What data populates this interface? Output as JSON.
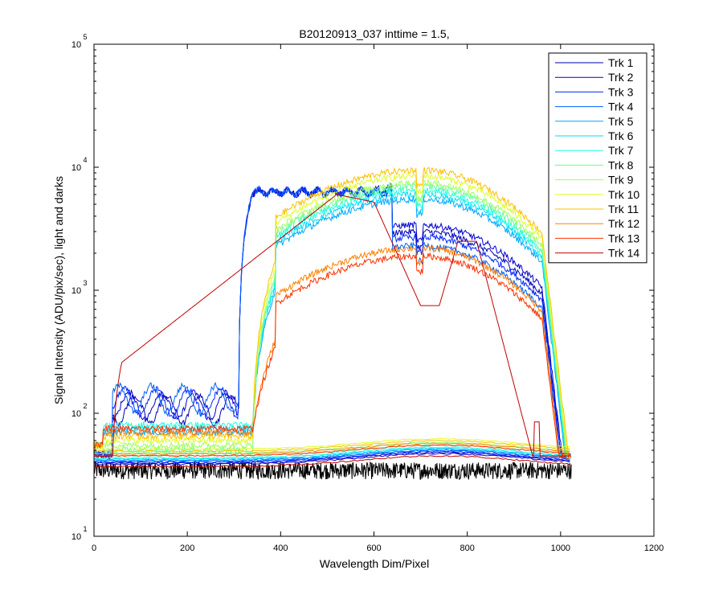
{
  "chart_data": {
    "type": "line",
    "title": "B20120913_037 inttime = 1.5,",
    "xlabel": "Wavelength Dim/Pixel",
    "ylabel": "Signal Intensity (ADU/pix/sec), light and darks",
    "xlim": [
      0,
      1200
    ],
    "ylim": [
      10,
      100000
    ],
    "yscale": "log",
    "xticks": [
      "0",
      "200",
      "400",
      "600",
      "800",
      "1000",
      "1200"
    ],
    "yticks": [
      {
        "base": "10",
        "exp": "1"
      },
      {
        "base": "10",
        "exp": "2"
      },
      {
        "base": "10",
        "exp": "3"
      },
      {
        "base": "10",
        "exp": "4"
      },
      {
        "base": "10",
        "exp": "5"
      }
    ],
    "grid": false,
    "legend_position": "top-right",
    "series": [
      {
        "name": "Trk 1",
        "color": "#0000b4",
        "peak": 3000,
        "dark": 47,
        "ramp": "blue"
      },
      {
        "name": "Trk 2",
        "color": "#0000d2",
        "peak": 3400,
        "dark": 48,
        "ramp": "blue"
      },
      {
        "name": "Trk 3",
        "color": "#0028ff",
        "peak": 2700,
        "dark": 49,
        "ramp": "blue"
      },
      {
        "name": "Trk 4",
        "color": "#0060ff",
        "peak": 2300,
        "dark": 50,
        "ramp": "blue"
      },
      {
        "name": "Trk 5",
        "color": "#00a8ff",
        "peak": 5500,
        "dark": 51,
        "ramp": "red"
      },
      {
        "name": "Trk 6",
        "color": "#00d8ff",
        "peak": 6000,
        "dark": 52,
        "ramp": "red"
      },
      {
        "name": "Trk 7",
        "color": "#20ffe0",
        "peak": 6500,
        "dark": 53,
        "ramp": "red"
      },
      {
        "name": "Trk 8",
        "color": "#60ff9f",
        "peak": 7000,
        "dark": 55,
        "ramp": "red"
      },
      {
        "name": "Trk 9",
        "color": "#a0ff60",
        "peak": 7500,
        "dark": 58,
        "ramp": "red"
      },
      {
        "name": "Trk 10",
        "color": "#e0ff20",
        "peak": 8500,
        "dark": 62,
        "ramp": "red"
      },
      {
        "name": "Trk 11",
        "color": "#ffc000",
        "peak": 9500,
        "dark": 60,
        "ramp": "red"
      },
      {
        "name": "Trk 12",
        "color": "#ff8000",
        "peak": 2200,
        "dark": 57,
        "ramp": "red"
      },
      {
        "name": "Trk 13",
        "color": "#ff3000",
        "peak": 1900,
        "dark": 55,
        "ramp": "red"
      },
      {
        "name": "Trk 14",
        "color": "#c00000",
        "peak": 6000,
        "dark": 45,
        "ramp": "hump"
      }
    ],
    "dark_frame": {
      "color": "#000000",
      "min": 29,
      "max": 40
    }
  }
}
